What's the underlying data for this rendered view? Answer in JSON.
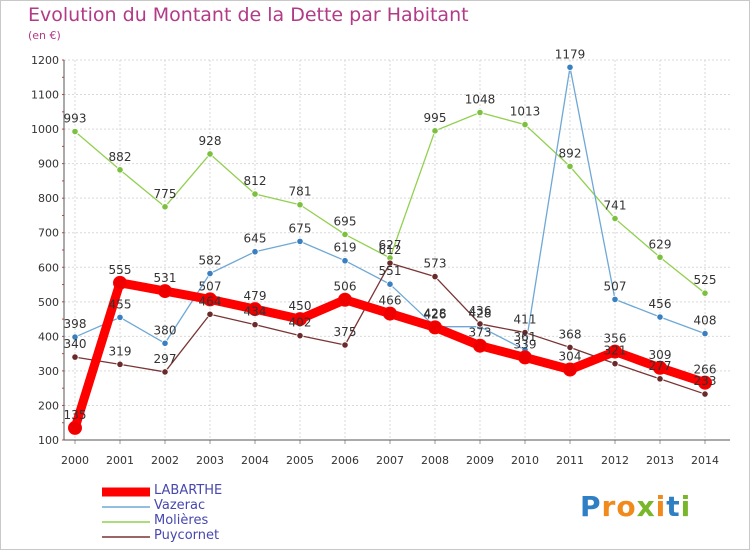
{
  "header": {
    "title": "Evolution du Montant de la Dette par Habitant",
    "unit": "(en €)"
  },
  "brand": {
    "letters": [
      "P",
      "r",
      "o",
      "x",
      "i",
      "t",
      "i"
    ],
    "colors": [
      "#2f7fc4",
      "#f08a1c",
      "#f08a1c",
      "#78b62a",
      "#f08a1c",
      "#2f7fc4",
      "#78b62a"
    ]
  },
  "chart_data": {
    "type": "line",
    "x": [
      "2000",
      "2001",
      "2002",
      "2003",
      "2004",
      "2005",
      "2006",
      "2007",
      "2008",
      "2009",
      "2010",
      "2011",
      "2012",
      "2013",
      "2014"
    ],
    "ylim": [
      100,
      1200
    ],
    "yticks": [
      100,
      200,
      300,
      400,
      500,
      600,
      700,
      800,
      900,
      1000,
      1100,
      1200
    ],
    "grid": true,
    "legend_position": "bottom-left",
    "series": [
      {
        "name": "LABARTHE",
        "color": "#ff0000",
        "point_color": "#ee0000",
        "values": [
          135,
          555,
          531,
          507,
          479,
          450,
          506,
          466,
          426,
          373,
          339,
          304,
          356,
          309,
          266
        ]
      },
      {
        "name": "Vazerac",
        "color": "#6fa8d6",
        "point_color": "#3a7fc0",
        "values": [
          398,
          455,
          380,
          582,
          645,
          675,
          619,
          551,
          428,
          428,
          361,
          1179,
          507,
          456,
          408
        ]
      },
      {
        "name": "Molières",
        "color": "#92d050",
        "point_color": "#7cc040",
        "values": [
          993,
          882,
          775,
          928,
          812,
          781,
          695,
          627,
          995,
          1048,
          1013,
          892,
          741,
          629,
          525
        ]
      },
      {
        "name": "Puycornet",
        "color": "#7a3434",
        "point_color": "#6b2a2a",
        "values": [
          340,
          319,
          297,
          464,
          434,
          402,
          375,
          612,
          573,
          436,
          411,
          368,
          321,
          277,
          233
        ]
      }
    ]
  }
}
